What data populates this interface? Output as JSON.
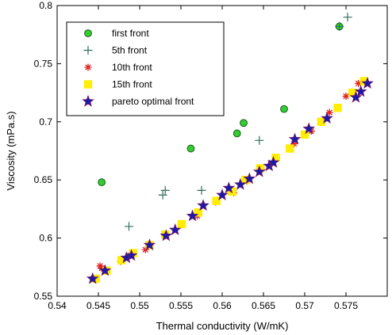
{
  "chart_data": {
    "type": "scatter",
    "title": "",
    "xlabel": "Thermal conductivity (W/mK)",
    "ylabel": "Viscosity (mPa.s)",
    "xlim": [
      0.54,
      0.58
    ],
    "ylim": [
      0.55,
      0.8
    ],
    "xticks": [
      0.54,
      0.545,
      0.55,
      0.555,
      0.56,
      0.565,
      0.57,
      0.575
    ],
    "yticks": [
      0.55,
      0.6,
      0.65,
      0.7,
      0.75,
      0.8
    ],
    "xtick_labels": [
      "0.54",
      "0.545",
      "0.55",
      "0.555",
      "0.56",
      "0.565",
      "0.57",
      "0.575"
    ],
    "ytick_labels": [
      "0.55",
      "0.6",
      "0.65",
      "0.7",
      "0.75",
      "0.8"
    ],
    "grid": false,
    "legend_position": "top-left",
    "series": [
      {
        "name": "first front",
        "marker": "circle",
        "color": "#33cc33",
        "edge": "#1a5c1a",
        "x": [
          0.5454,
          0.5562,
          0.5618,
          0.5626,
          0.5675,
          0.5742
        ],
        "y": [
          0.648,
          0.677,
          0.69,
          0.699,
          0.711,
          0.782
        ]
      },
      {
        "name": "5th front",
        "marker": "plus",
        "color": "#2f6f5f",
        "x": [
          0.5487,
          0.5528,
          0.5531,
          0.5575,
          0.5645,
          0.5742,
          0.5752
        ],
        "y": [
          0.61,
          0.637,
          0.641,
          0.641,
          0.684,
          0.782,
          0.79
        ]
      },
      {
        "name": "10th front",
        "marker": "asterisk",
        "color": "#e02020",
        "x": [
          0.5443,
          0.5452,
          0.5454,
          0.5477,
          0.5489,
          0.5507,
          0.5531,
          0.555,
          0.557,
          0.5592,
          0.5614,
          0.563,
          0.5648,
          0.5665,
          0.5687,
          0.5708,
          0.573,
          0.575,
          0.5765
        ],
        "y": [
          0.565,
          0.576,
          0.574,
          0.58,
          0.585,
          0.59,
          0.602,
          0.612,
          0.619,
          0.631,
          0.639,
          0.649,
          0.659,
          0.668,
          0.681,
          0.692,
          0.708,
          0.722,
          0.733
        ]
      },
      {
        "name": "15th front",
        "marker": "square",
        "color": "#ffee00",
        "x": [
          0.5447,
          0.546,
          0.5478,
          0.5492,
          0.5512,
          0.5531,
          0.5551,
          0.5571,
          0.5593,
          0.5612,
          0.5628,
          0.5646,
          0.5665,
          0.5682,
          0.57,
          0.572,
          0.574,
          0.5758,
          0.5772
        ],
        "y": [
          0.565,
          0.572,
          0.581,
          0.587,
          0.594,
          0.603,
          0.612,
          0.622,
          0.632,
          0.64,
          0.65,
          0.66,
          0.669,
          0.677,
          0.689,
          0.7,
          0.712,
          0.725,
          0.735
        ]
      },
      {
        "name": "pareto optimal front",
        "marker": "star",
        "color": "#1a1aa8",
        "x": [
          0.5443,
          0.5458,
          0.5484,
          0.549,
          0.5512,
          0.5532,
          0.5543,
          0.5564,
          0.5577,
          0.56,
          0.5608,
          0.5622,
          0.5633,
          0.5645,
          0.5657,
          0.5662,
          0.5688,
          0.5705,
          0.5727,
          0.5762,
          0.5768,
          0.5776
        ],
        "y": [
          0.565,
          0.572,
          0.583,
          0.585,
          0.594,
          0.602,
          0.607,
          0.619,
          0.628,
          0.637,
          0.643,
          0.646,
          0.651,
          0.657,
          0.662,
          0.665,
          0.685,
          0.694,
          0.703,
          0.721,
          0.726,
          0.733
        ]
      }
    ]
  }
}
